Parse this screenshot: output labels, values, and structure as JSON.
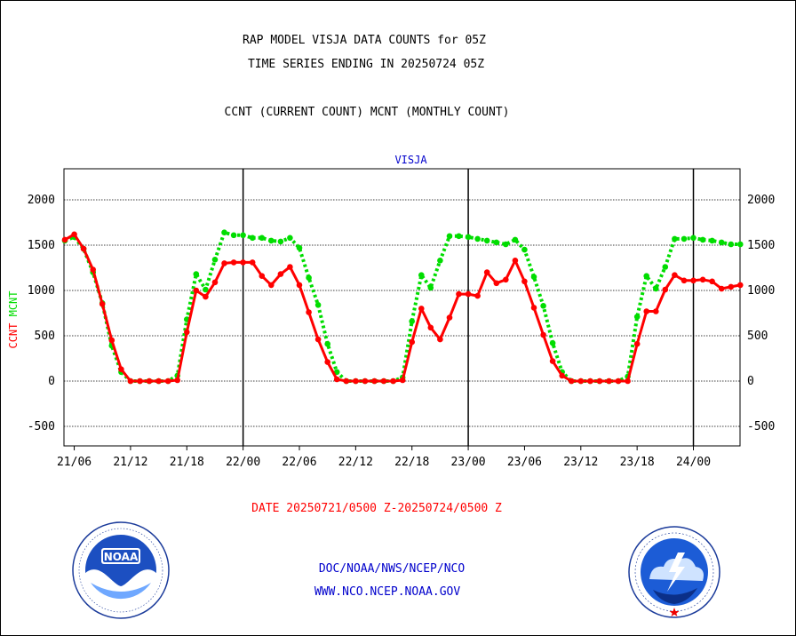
{
  "title_line1": "RAP MODEL VISJA DATA COUNTS for 05Z",
  "title_line2": "TIME SERIES ENDING IN 20250724 05Z",
  "legend_text": "CCNT (CURRENT COUNT) MCNT (MONTHLY COUNT)",
  "station": "VISJA",
  "ylabel_left_red": "CCNT",
  "ylabel_left_green": "MCNT",
  "date_range": "DATE 20250721/0500 Z-20250724/0500 Z",
  "footer_line1": "DOC/NOAA/NWS/NCEP/NCO",
  "footer_line2": "WWW.NCO.NCEP.NOAA.GOV",
  "logos": {
    "left": "NOAA",
    "right": "National Weather Service"
  },
  "colors": {
    "ccnt": "#ff0000",
    "mcnt": "#00dd00",
    "text_blue": "#0000cc",
    "text_red": "#ff0000"
  },
  "chart_data": {
    "type": "line",
    "ylim": [
      -700,
      2350
    ],
    "yticks": [
      -500,
      0,
      500,
      1000,
      1500,
      2000
    ],
    "xlim_hours": [
      0,
      72
    ],
    "xticks": [
      {
        "label": "21/06",
        "hour": 1
      },
      {
        "label": "21/12",
        "hour": 7
      },
      {
        "label": "21/18",
        "hour": 13
      },
      {
        "label": "22/00",
        "hour": 19
      },
      {
        "label": "22/06",
        "hour": 25
      },
      {
        "label": "22/12",
        "hour": 31
      },
      {
        "label": "22/18",
        "hour": 37
      },
      {
        "label": "23/00",
        "hour": 43
      },
      {
        "label": "23/06",
        "hour": 49
      },
      {
        "label": "23/12",
        "hour": 55
      },
      {
        "label": "23/18",
        "hour": 61
      },
      {
        "label": "24/00",
        "hour": 67
      }
    ],
    "day_lines_hours": [
      19,
      43,
      67
    ],
    "series": [
      {
        "name": "CCNT",
        "style": "solid",
        "values": [
          1560,
          1620,
          1460,
          1230,
          850,
          450,
          130,
          0,
          0,
          0,
          0,
          0,
          10,
          540,
          1000,
          930,
          1090,
          1300,
          1310,
          1310,
          1310,
          1160,
          1060,
          1180,
          1260,
          1060,
          760,
          460,
          210,
          20,
          0,
          0,
          0,
          0,
          0,
          0,
          10,
          430,
          800,
          590,
          460,
          700,
          960,
          960,
          940,
          1200,
          1080,
          1120,
          1330,
          1100,
          810,
          510,
          220,
          60,
          0,
          0,
          0,
          0,
          0,
          0,
          0,
          410,
          770,
          770,
          1010,
          1170,
          1110,
          1110,
          1120,
          1100,
          1020,
          1040,
          1060
        ]
      },
      {
        "name": "MCNT",
        "style": "dotted",
        "values": [
          1550,
          1590,
          1460,
          1200,
          860,
          390,
          100,
          0,
          0,
          0,
          0,
          0,
          60,
          680,
          1180,
          1010,
          1340,
          1640,
          1610,
          1610,
          1580,
          1580,
          1550,
          1540,
          1580,
          1470,
          1140,
          840,
          410,
          100,
          0,
          0,
          0,
          0,
          0,
          0,
          40,
          660,
          1170,
          1030,
          1330,
          1600,
          1600,
          1590,
          1570,
          1550,
          1530,
          1510,
          1560,
          1450,
          1150,
          830,
          420,
          100,
          0,
          0,
          0,
          0,
          0,
          0,
          50,
          710,
          1160,
          1020,
          1260,
          1570,
          1570,
          1580,
          1560,
          1550,
          1530,
          1510,
          1510
        ]
      }
    ]
  }
}
